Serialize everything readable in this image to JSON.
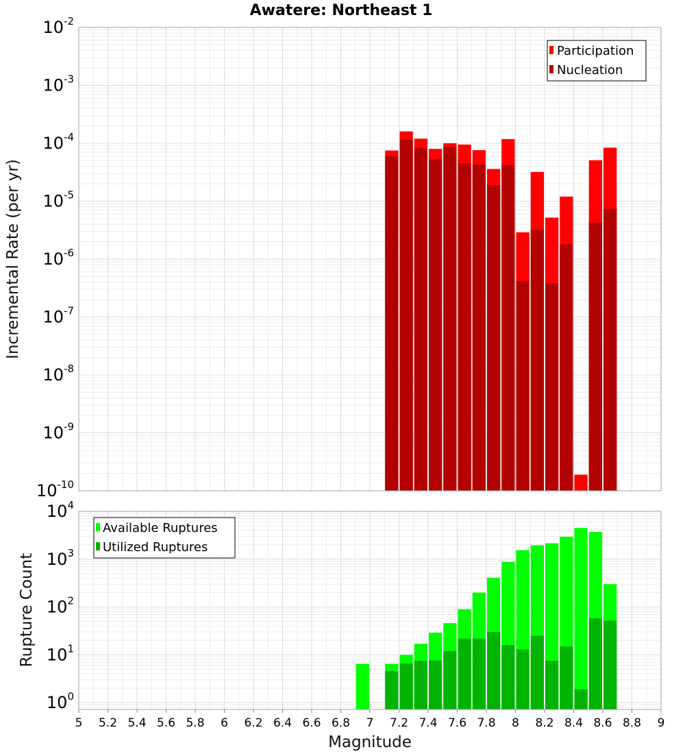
{
  "chart_data": [
    {
      "type": "bar",
      "title": "Awatere: Northeast 1",
      "ylabel": "Incremental Rate (per yr)",
      "xlim": [
        5,
        9
      ],
      "ylim": [
        1e-10,
        0.01
      ],
      "yscale": "log",
      "grid": true,
      "legend_position": "top-right",
      "x": [
        7.15,
        7.25,
        7.35,
        7.45,
        7.55,
        7.65,
        7.75,
        7.85,
        7.95,
        8.05,
        8.15,
        8.25,
        8.35,
        8.45,
        8.55,
        8.65
      ],
      "series": [
        {
          "name": "Participation",
          "color": "#ff0000",
          "values": [
            7.5e-05,
            0.00016,
            0.00012,
            8e-05,
            0.0001,
            9.5e-05,
            7.6e-05,
            3.6e-05,
            0.000118,
            2.9e-06,
            3.2e-05,
            5.2e-06,
            1.2e-05,
            1.9e-10,
            5.1e-05,
            8.4e-05
          ]
        },
        {
          "name": "Nucleation",
          "color": "#b30000",
          "values": [
            6e-05,
            0.000115,
            8.2e-05,
            5.3e-05,
            8.5e-05,
            4.5e-05,
            4.3e-05,
            1.9e-05,
            4.2e-05,
            4.2e-07,
            3.2e-06,
            3.8e-07,
            1.8e-06,
            null,
            4.3e-06,
            7.4e-06
          ]
        }
      ]
    },
    {
      "type": "bar",
      "ylabel": "Rupture Count",
      "xlabel": "Magnitude",
      "xlim": [
        5,
        9
      ],
      "ylim": [
        0.72,
        10000
      ],
      "yscale": "log",
      "grid": true,
      "legend_position": "top-left",
      "x": [
        6.95,
        7.15,
        7.25,
        7.35,
        7.45,
        7.55,
        7.65,
        7.75,
        7.85,
        7.95,
        8.05,
        8.15,
        8.25,
        8.35,
        8.45,
        8.55,
        8.65
      ],
      "x_ticks": [
        "5",
        "5.2",
        "5.4",
        "5.6",
        "5.8",
        "6",
        "6.2",
        "6.4",
        "6.6",
        "6.8",
        "7",
        "7.2",
        "7.4",
        "7.6",
        "7.8",
        "8",
        "8.2",
        "8.4",
        "8.6",
        "8.8",
        "9"
      ],
      "series": [
        {
          "name": "Available Ruptures",
          "color": "#00ff00",
          "values": [
            6.5,
            6.5,
            10,
            17,
            29,
            46,
            90,
            200,
            410,
            880,
            1550,
            1950,
            2150,
            2950,
            4500,
            3700,
            300
          ]
        },
        {
          "name": "Utilized Ruptures",
          "color": "#00b300",
          "values": [
            null,
            4.6,
            6.6,
            7.5,
            7.6,
            12,
            22,
            22,
            30,
            16,
            13,
            25,
            7.5,
            15,
            1.9,
            58,
            52
          ]
        }
      ]
    }
  ]
}
